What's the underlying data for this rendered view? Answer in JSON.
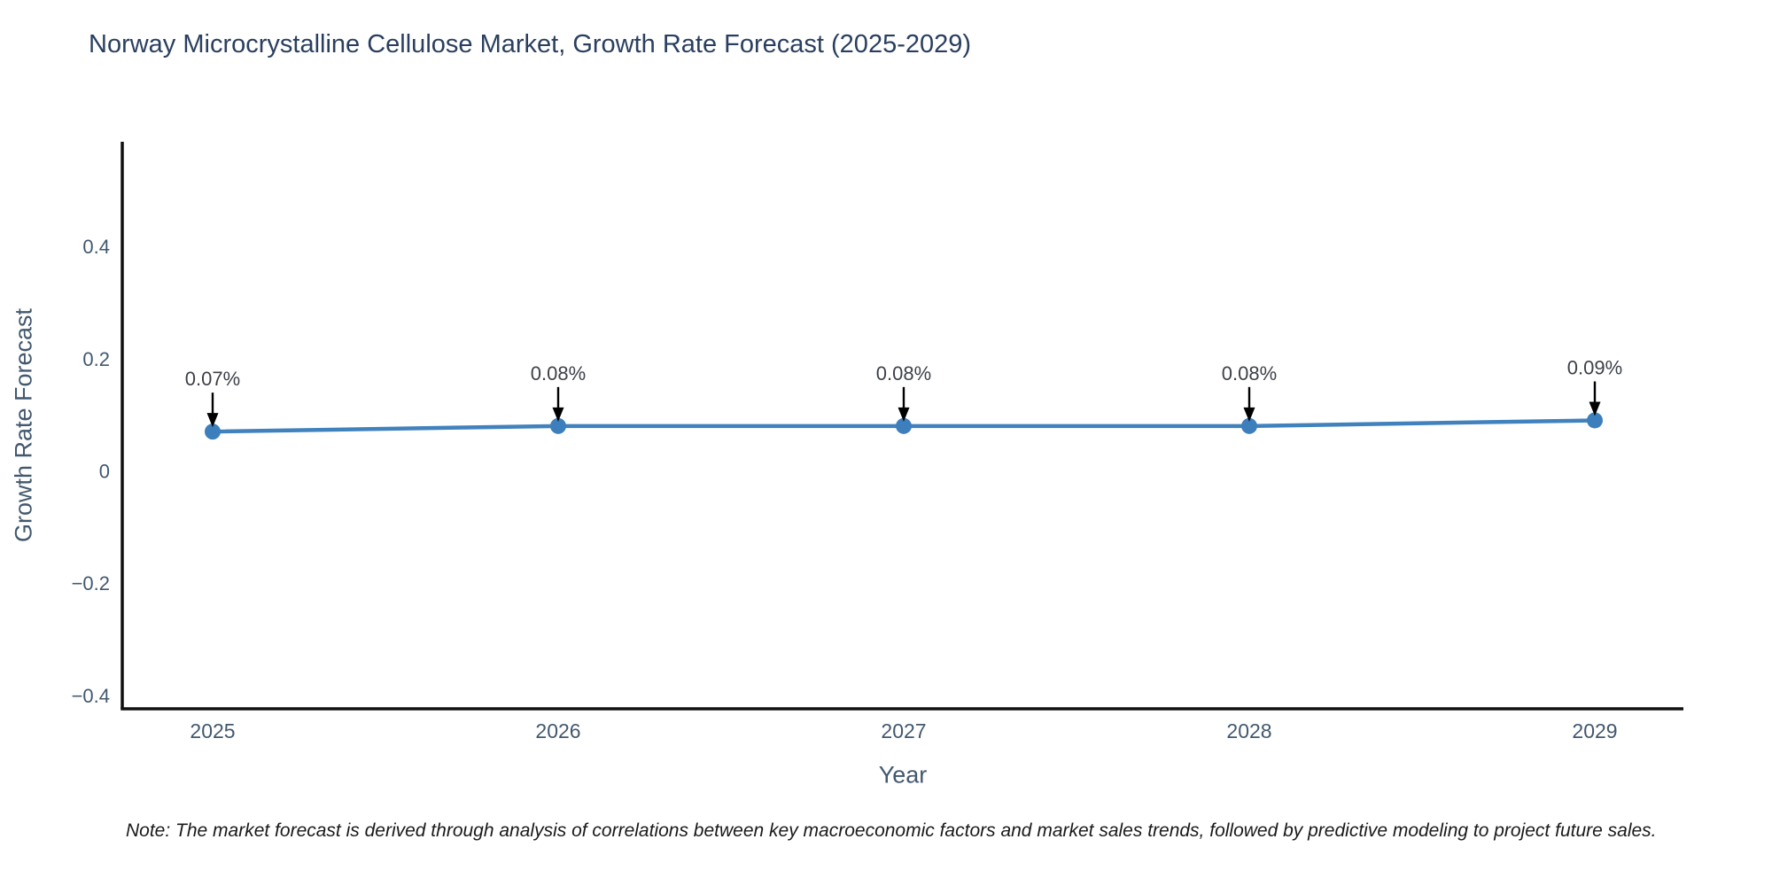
{
  "title": "Norway Microcrystalline Cellulose Market, Growth Rate Forecast (2025-2029)",
  "note": "Note: The market forecast is derived through analysis of correlations between key macroeconomic factors and market sales trends, followed by predictive modeling to project future sales.",
  "chart_data": {
    "type": "line",
    "title": "Norway Microcrystalline Cellulose Market, Growth Rate Forecast (2025-2029)",
    "xlabel": "Year",
    "ylabel": "Growth Rate Forecast",
    "x": [
      2025,
      2026,
      2027,
      2028,
      2029
    ],
    "values": [
      0.07,
      0.08,
      0.08,
      0.08,
      0.09
    ],
    "point_labels": [
      "0.07%",
      "0.08%",
      "0.08%",
      "0.08%",
      "0.09%"
    ],
    "xtick_labels": [
      "2025",
      "2026",
      "2027",
      "2028",
      "2029"
    ],
    "yticks": [
      0.4,
      0.2,
      0,
      -0.2,
      -0.4
    ],
    "ytick_labels": [
      "0.4",
      "0.2",
      "0",
      "−0.2",
      "−0.4"
    ],
    "ylim": [
      -0.45,
      0.59
    ],
    "grid": false,
    "legend": "none",
    "annotation_style": "down-arrow",
    "colors": {
      "line": "#4182bd",
      "marker": "#3d7ebc",
      "arrow": "#000000",
      "spine": "#101010",
      "title_text": "#2a3f5f",
      "axis_text": "#42586e",
      "annotation_text": "#3d4148",
      "note_text": "#1a1a1a",
      "background": "#ffffff"
    }
  }
}
